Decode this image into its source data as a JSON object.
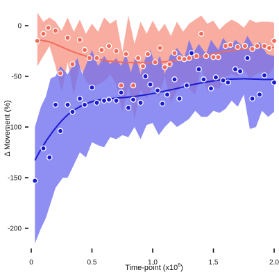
{
  "chart_data": {
    "type": "scatter",
    "title": "",
    "xlabel": "Time-point (x10",
    "xlabel_sup": "6",
    "xlabel_close": ")",
    "ylabel": "Δ Movement (%)",
    "xlim": [
      0,
      2.0
    ],
    "ylim": [
      -200,
      0
    ],
    "x_ticks": [
      0,
      0.5,
      1.0,
      1.5,
      2.0
    ],
    "x_tick_labels": [
      "0",
      "0.5",
      "1.0",
      "1.5",
      "2.0"
    ],
    "y_ticks": [
      0,
      -50,
      -100,
      -150,
      -200
    ],
    "y_tick_labels": [
      "0",
      "-50",
      "-100",
      "-150",
      "-200"
    ],
    "grid": false,
    "legend": "none",
    "series": [
      {
        "color": "#f26a5a",
        "band_color": "#f9a99c",
        "points": [
          [
            0.05,
            -15
          ],
          [
            0.1,
            -8
          ],
          [
            0.14,
            -2
          ],
          [
            0.2,
            -5
          ],
          [
            0.24,
            -47
          ],
          [
            0.3,
            -12
          ],
          [
            0.34,
            -38
          ],
          [
            0.4,
            -14
          ],
          [
            0.44,
            -24
          ],
          [
            0.48,
            -32
          ],
          [
            0.54,
            -32
          ],
          [
            0.58,
            -24
          ],
          [
            0.64,
            -20
          ],
          [
            0.7,
            -25
          ],
          [
            0.74,
            -59
          ],
          [
            0.78,
            -28
          ],
          [
            0.84,
            -59
          ],
          [
            0.88,
            -32
          ],
          [
            0.92,
            -40
          ],
          [
            0.96,
            -28
          ],
          [
            1.02,
            -36
          ],
          [
            1.06,
            -22
          ],
          [
            1.1,
            -41
          ],
          [
            1.14,
            -38
          ],
          [
            1.18,
            -27
          ],
          [
            1.22,
            -32
          ],
          [
            1.26,
            -33
          ],
          [
            1.3,
            -32
          ],
          [
            1.36,
            -30
          ],
          [
            1.4,
            -8
          ],
          [
            1.44,
            -30
          ],
          [
            1.5,
            -31
          ],
          [
            1.54,
            -31
          ],
          [
            1.6,
            -20
          ],
          [
            1.64,
            -19
          ],
          [
            1.7,
            -21
          ],
          [
            1.76,
            -20
          ],
          [
            1.82,
            -23
          ],
          [
            1.86,
            -20
          ],
          [
            1.92,
            -20
          ],
          [
            1.96,
            -22
          ],
          [
            2.0,
            -15
          ]
        ],
        "trend": [
          [
            0.05,
            -14
          ],
          [
            0.15,
            -16
          ],
          [
            0.25,
            -21
          ],
          [
            0.35,
            -26
          ],
          [
            0.45,
            -30
          ],
          [
            0.55,
            -33
          ],
          [
            0.65,
            -35
          ],
          [
            0.75,
            -36
          ],
          [
            0.85,
            -36.5
          ],
          [
            0.95,
            -36.5
          ],
          [
            1.05,
            -36
          ],
          [
            1.15,
            -35
          ],
          [
            1.25,
            -33.5
          ],
          [
            1.35,
            -31.5
          ],
          [
            1.45,
            -29
          ],
          [
            1.55,
            -26.5
          ],
          [
            1.65,
            -24.5
          ],
          [
            1.75,
            -23
          ],
          [
            1.85,
            -22
          ],
          [
            1.95,
            -21.5
          ],
          [
            2.0,
            -21.5
          ]
        ],
        "band_upper": [
          [
            0.05,
            13
          ],
          [
            0.1,
            4
          ],
          [
            0.15,
            8
          ],
          [
            0.2,
            4
          ],
          [
            0.25,
            -5
          ],
          [
            0.3,
            8
          ],
          [
            0.35,
            -6
          ],
          [
            0.4,
            6
          ],
          [
            0.45,
            -8
          ],
          [
            0.5,
            2
          ],
          [
            0.55,
            -6
          ],
          [
            0.6,
            8
          ],
          [
            0.65,
            2
          ],
          [
            0.7,
            6
          ],
          [
            0.75,
            -26
          ],
          [
            0.8,
            10
          ],
          [
            0.85,
            -18
          ],
          [
            0.9,
            4
          ],
          [
            0.95,
            -8
          ],
          [
            1.0,
            5
          ],
          [
            1.05,
            -6
          ],
          [
            1.1,
            2
          ],
          [
            1.15,
            -10
          ],
          [
            1.2,
            4
          ],
          [
            1.25,
            -6
          ],
          [
            1.3,
            2
          ],
          [
            1.35,
            6
          ],
          [
            1.4,
            10
          ],
          [
            1.45,
            2
          ],
          [
            1.5,
            5
          ],
          [
            1.55,
            -4
          ],
          [
            1.6,
            2
          ],
          [
            1.65,
            6
          ],
          [
            1.7,
            3
          ],
          [
            1.75,
            -2
          ],
          [
            1.8,
            6
          ],
          [
            1.85,
            3
          ],
          [
            1.9,
            4
          ],
          [
            1.95,
            4
          ],
          [
            2.0,
            3
          ]
        ],
        "band_lower": [
          [
            0.05,
            -40
          ],
          [
            0.1,
            -30
          ],
          [
            0.15,
            -20
          ],
          [
            0.2,
            -40
          ],
          [
            0.25,
            -65
          ],
          [
            0.3,
            -36
          ],
          [
            0.35,
            -68
          ],
          [
            0.4,
            -40
          ],
          [
            0.45,
            -55
          ],
          [
            0.5,
            -60
          ],
          [
            0.55,
            -58
          ],
          [
            0.6,
            -55
          ],
          [
            0.65,
            -48
          ],
          [
            0.7,
            -58
          ],
          [
            0.75,
            -85
          ],
          [
            0.8,
            -60
          ],
          [
            0.85,
            -92
          ],
          [
            0.9,
            -63
          ],
          [
            0.95,
            -72
          ],
          [
            1.0,
            -60
          ],
          [
            1.05,
            -70
          ],
          [
            1.1,
            -50
          ],
          [
            1.15,
            -76
          ],
          [
            1.2,
            -64
          ],
          [
            1.25,
            -56
          ],
          [
            1.3,
            -62
          ],
          [
            1.35,
            -68
          ],
          [
            1.4,
            -40
          ],
          [
            1.45,
            -65
          ],
          [
            1.5,
            -62
          ],
          [
            1.55,
            -62
          ],
          [
            1.6,
            -50
          ],
          [
            1.65,
            -48
          ],
          [
            1.7,
            -50
          ],
          [
            1.75,
            -44
          ],
          [
            1.8,
            -52
          ],
          [
            1.85,
            -48
          ],
          [
            1.9,
            -46
          ],
          [
            1.95,
            -50
          ],
          [
            2.0,
            -40
          ]
        ]
      },
      {
        "color": "#1a1ad1",
        "band_color": "#6e6ef0",
        "points": [
          [
            0.03,
            -153
          ],
          [
            0.1,
            -121
          ],
          [
            0.15,
            -130
          ],
          [
            0.2,
            -78
          ],
          [
            0.24,
            -104
          ],
          [
            0.3,
            -78
          ],
          [
            0.34,
            -85
          ],
          [
            0.4,
            -72
          ],
          [
            0.44,
            -78
          ],
          [
            0.5,
            -61
          ],
          [
            0.54,
            -76
          ],
          [
            0.6,
            -74
          ],
          [
            0.64,
            -73
          ],
          [
            0.7,
            -74
          ],
          [
            0.74,
            -66
          ],
          [
            0.8,
            -81
          ],
          [
            0.84,
            -73
          ],
          [
            0.9,
            -76
          ],
          [
            0.94,
            -50
          ],
          [
            0.98,
            -58
          ],
          [
            1.04,
            -64
          ],
          [
            1.08,
            -77
          ],
          [
            1.12,
            -68
          ],
          [
            1.18,
            -53
          ],
          [
            1.22,
            -72
          ],
          [
            1.28,
            -59
          ],
          [
            1.32,
            -27
          ],
          [
            1.38,
            -43
          ],
          [
            1.42,
            -53
          ],
          [
            1.48,
            -62
          ],
          [
            1.52,
            -51
          ],
          [
            1.58,
            -54
          ],
          [
            1.62,
            -56
          ],
          [
            1.68,
            -43
          ],
          [
            1.72,
            -45
          ],
          [
            1.78,
            -32
          ],
          [
            1.82,
            -72
          ],
          [
            1.88,
            -68
          ],
          [
            1.92,
            -49
          ],
          [
            2.0,
            -56
          ]
        ],
        "trend": [
          [
            0.03,
            -133
          ],
          [
            0.1,
            -118
          ],
          [
            0.2,
            -101
          ],
          [
            0.3,
            -88
          ],
          [
            0.4,
            -80
          ],
          [
            0.5,
            -75
          ],
          [
            0.6,
            -72.5
          ],
          [
            0.7,
            -71.5
          ],
          [
            0.8,
            -70.5
          ],
          [
            0.9,
            -69
          ],
          [
            1.0,
            -67
          ],
          [
            1.1,
            -64.5
          ],
          [
            1.2,
            -62
          ],
          [
            1.3,
            -59
          ],
          [
            1.4,
            -56.5
          ],
          [
            1.5,
            -54.5
          ],
          [
            1.6,
            -53
          ],
          [
            1.7,
            -52.5
          ],
          [
            1.8,
            -52.5
          ],
          [
            1.9,
            -53
          ],
          [
            2.0,
            -53
          ]
        ],
        "band_upper": [
          [
            0.03,
            -100
          ],
          [
            0.08,
            -80
          ],
          [
            0.12,
            -70
          ],
          [
            0.16,
            -52
          ],
          [
            0.2,
            -50
          ],
          [
            0.24,
            -40
          ],
          [
            0.3,
            -48
          ],
          [
            0.34,
            -40
          ],
          [
            0.38,
            -32
          ],
          [
            0.42,
            -48
          ],
          [
            0.46,
            -36
          ],
          [
            0.5,
            -24
          ],
          [
            0.55,
            -40
          ],
          [
            0.6,
            -30
          ],
          [
            0.65,
            -38
          ],
          [
            0.7,
            -32
          ],
          [
            0.74,
            -40
          ],
          [
            0.78,
            -28
          ],
          [
            0.82,
            -46
          ],
          [
            0.86,
            -30
          ],
          [
            0.9,
            -48
          ],
          [
            0.94,
            -32
          ],
          [
            0.98,
            -24
          ],
          [
            1.02,
            -38
          ],
          [
            1.06,
            -30
          ],
          [
            1.1,
            -48
          ],
          [
            1.14,
            -30
          ],
          [
            1.2,
            -22
          ],
          [
            1.26,
            -32
          ],
          [
            1.3,
            -14
          ],
          [
            1.34,
            -26
          ],
          [
            1.38,
            -18
          ],
          [
            1.44,
            -28
          ],
          [
            1.48,
            -14
          ],
          [
            1.54,
            -24
          ],
          [
            1.58,
            -12
          ],
          [
            1.64,
            -22
          ],
          [
            1.68,
            -14
          ],
          [
            1.74,
            -20
          ],
          [
            1.78,
            -10
          ],
          [
            1.84,
            -22
          ],
          [
            1.88,
            -16
          ],
          [
            1.94,
            -28
          ],
          [
            2.0,
            -30
          ]
        ],
        "band_lower": [
          [
            0.03,
            -215
          ],
          [
            0.08,
            -200
          ],
          [
            0.12,
            -190
          ],
          [
            0.16,
            -175
          ],
          [
            0.2,
            -160
          ],
          [
            0.26,
            -150
          ],
          [
            0.3,
            -150
          ],
          [
            0.36,
            -135
          ],
          [
            0.4,
            -125
          ],
          [
            0.45,
            -130
          ],
          [
            0.5,
            -115
          ],
          [
            0.55,
            -118
          ],
          [
            0.6,
            -120
          ],
          [
            0.65,
            -110
          ],
          [
            0.7,
            -112
          ],
          [
            0.75,
            -108
          ],
          [
            0.8,
            -110
          ],
          [
            0.85,
            -100
          ],
          [
            0.9,
            -112
          ],
          [
            0.95,
            -98
          ],
          [
            1.0,
            -96
          ],
          [
            1.05,
            -108
          ],
          [
            1.1,
            -100
          ],
          [
            1.15,
            -94
          ],
          [
            1.2,
            -100
          ],
          [
            1.25,
            -96
          ],
          [
            1.3,
            -92
          ],
          [
            1.35,
            -84
          ],
          [
            1.4,
            -90
          ],
          [
            1.45,
            -90
          ],
          [
            1.5,
            -84
          ],
          [
            1.55,
            -86
          ],
          [
            1.6,
            -82
          ],
          [
            1.65,
            -74
          ],
          [
            1.7,
            -80
          ],
          [
            1.75,
            -68
          ],
          [
            1.8,
            -102
          ],
          [
            1.85,
            -100
          ],
          [
            1.9,
            -84
          ],
          [
            1.95,
            -90
          ],
          [
            2.0,
            -85
          ]
        ]
      }
    ]
  }
}
